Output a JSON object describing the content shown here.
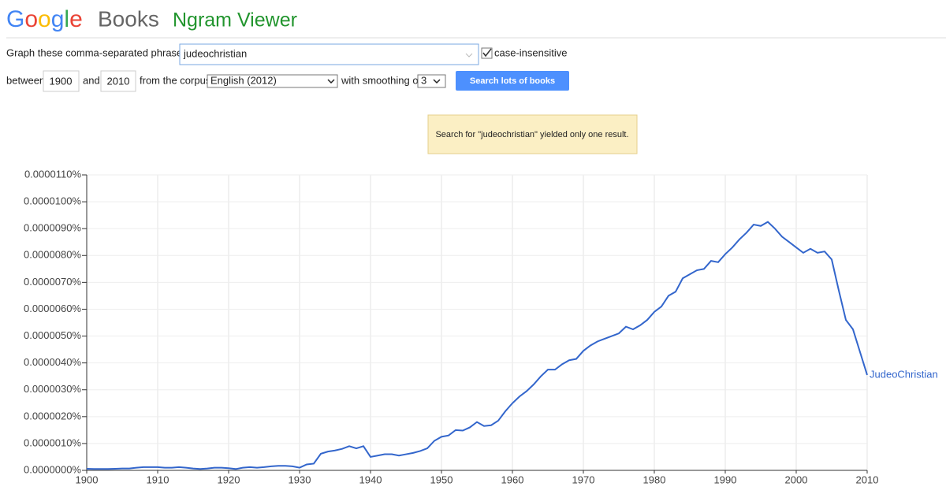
{
  "header": {
    "logo": "Google",
    "product": "Books",
    "title": "Ngram Viewer"
  },
  "form": {
    "phrases_label": "Graph these comma-separated phrases:",
    "phrases_value": "judeochristian",
    "case_label": "case-insensitive",
    "between_label": "between",
    "start_year": "1900",
    "and_label": "and",
    "end_year": "2010",
    "corpus_label": "from the corpus",
    "corpus_value": "English (2012)",
    "smoothing_label": "with smoothing of",
    "smoothing_value": "3",
    "button": "Search lots of books"
  },
  "notice": "Search for \"judeochristian\" yielded only one result.",
  "chart_data": {
    "type": "line",
    "x": [
      1900,
      1901,
      1902,
      1903,
      1904,
      1905,
      1906,
      1907,
      1908,
      1909,
      1910,
      1911,
      1912,
      1913,
      1914,
      1915,
      1916,
      1917,
      1918,
      1919,
      1920,
      1921,
      1922,
      1923,
      1924,
      1925,
      1926,
      1927,
      1928,
      1929,
      1930,
      1931,
      1932,
      1933,
      1934,
      1935,
      1936,
      1937,
      1938,
      1939,
      1940,
      1941,
      1942,
      1943,
      1944,
      1945,
      1946,
      1947,
      1948,
      1949,
      1950,
      1951,
      1952,
      1953,
      1954,
      1955,
      1956,
      1957,
      1958,
      1959,
      1960,
      1961,
      1962,
      1963,
      1964,
      1965,
      1966,
      1967,
      1968,
      1969,
      1970,
      1971,
      1972,
      1973,
      1974,
      1975,
      1976,
      1977,
      1978,
      1979,
      1980,
      1981,
      1982,
      1983,
      1984,
      1985,
      1986,
      1987,
      1988,
      1989,
      1990,
      1991,
      1992,
      1993,
      1994,
      1995,
      1996,
      1997,
      1998,
      1999,
      2000,
      2001,
      2002,
      2003,
      2004,
      2005,
      2006,
      2007,
      2008,
      2009,
      2010
    ],
    "series": [
      {
        "name": "JudeoChristian",
        "color": "#3366cc",
        "values": [
          6e-08,
          5e-08,
          5e-08,
          5e-08,
          6e-08,
          7e-08,
          7e-08,
          1e-07,
          1.2e-07,
          1.2e-07,
          1.2e-07,
          1e-07,
          1e-07,
          1.2e-07,
          1e-07,
          7e-08,
          5e-08,
          7e-08,
          1e-07,
          1e-07,
          8e-08,
          5e-08,
          1e-07,
          1.2e-07,
          1e-07,
          1.2e-07,
          1.5e-07,
          1.7e-07,
          1.7e-07,
          1.5e-07,
          1e-07,
          2.2e-07,
          2.5e-07,
          6.2e-07,
          7e-07,
          7.4e-07,
          8e-07,
          9e-07,
          8.2e-07,
          9e-07,
          5e-07,
          5.5e-07,
          6e-07,
          6e-07,
          5.5e-07,
          6e-07,
          6.5e-07,
          7.2e-07,
          8.2e-07,
          1.1e-06,
          1.25e-06,
          1.3e-06,
          1.5e-06,
          1.48e-06,
          1.6e-06,
          1.8e-06,
          1.65e-06,
          1.68e-06,
          1.85e-06,
          2.2e-06,
          2.5e-06,
          2.75e-06,
          2.95e-06,
          3.2e-06,
          3.5e-06,
          3.75e-06,
          3.75e-06,
          3.95e-06,
          4.1e-06,
          4.15e-06,
          4.45e-06,
          4.65e-06,
          4.8e-06,
          4.9e-06,
          5e-06,
          5.1e-06,
          5.35e-06,
          5.25e-06,
          5.4e-06,
          5.6e-06,
          5.9e-06,
          6.1e-06,
          6.5e-06,
          6.65e-06,
          7.15e-06,
          7.3e-06,
          7.45e-06,
          7.5e-06,
          7.8e-06,
          7.75e-06,
          8.05e-06,
          8.3e-06,
          8.6e-06,
          8.85e-06,
          9.15e-06,
          9.1e-06,
          9.25e-06,
          9e-06,
          8.7e-06,
          8.5e-06,
          8.3e-06,
          8.1e-06,
          8.25e-06,
          8.1e-06,
          8.15e-06,
          7.85e-06,
          6.7e-06,
          5.6e-06,
          5.25e-06,
          4.4e-06,
          3.55e-06
        ]
      }
    ],
    "xlim": [
      1900,
      2010
    ],
    "xticks": [
      1900,
      1910,
      1920,
      1930,
      1940,
      1950,
      1960,
      1970,
      1980,
      1990,
      2000,
      2010
    ],
    "ylim": [
      0,
      1.1e-05
    ],
    "yticks": [
      {
        "value": 0,
        "label": "0.0000000%"
      },
      {
        "value": 1e-06,
        "label": "0.0000010%"
      },
      {
        "value": 2e-06,
        "label": "0.0000020%"
      },
      {
        "value": 3e-06,
        "label": "0.0000030%"
      },
      {
        "value": 4e-06,
        "label": "0.0000040%"
      },
      {
        "value": 5e-06,
        "label": "0.0000050%"
      },
      {
        "value": 6e-06,
        "label": "0.0000060%"
      },
      {
        "value": 7e-06,
        "label": "0.0000070%"
      },
      {
        "value": 8e-06,
        "label": "0.0000080%"
      },
      {
        "value": 9e-06,
        "label": "0.0000090%"
      },
      {
        "value": 1e-05,
        "label": "0.0000100%"
      },
      {
        "value": 1.1e-05,
        "label": "0.0000110%"
      }
    ],
    "grid": true
  }
}
